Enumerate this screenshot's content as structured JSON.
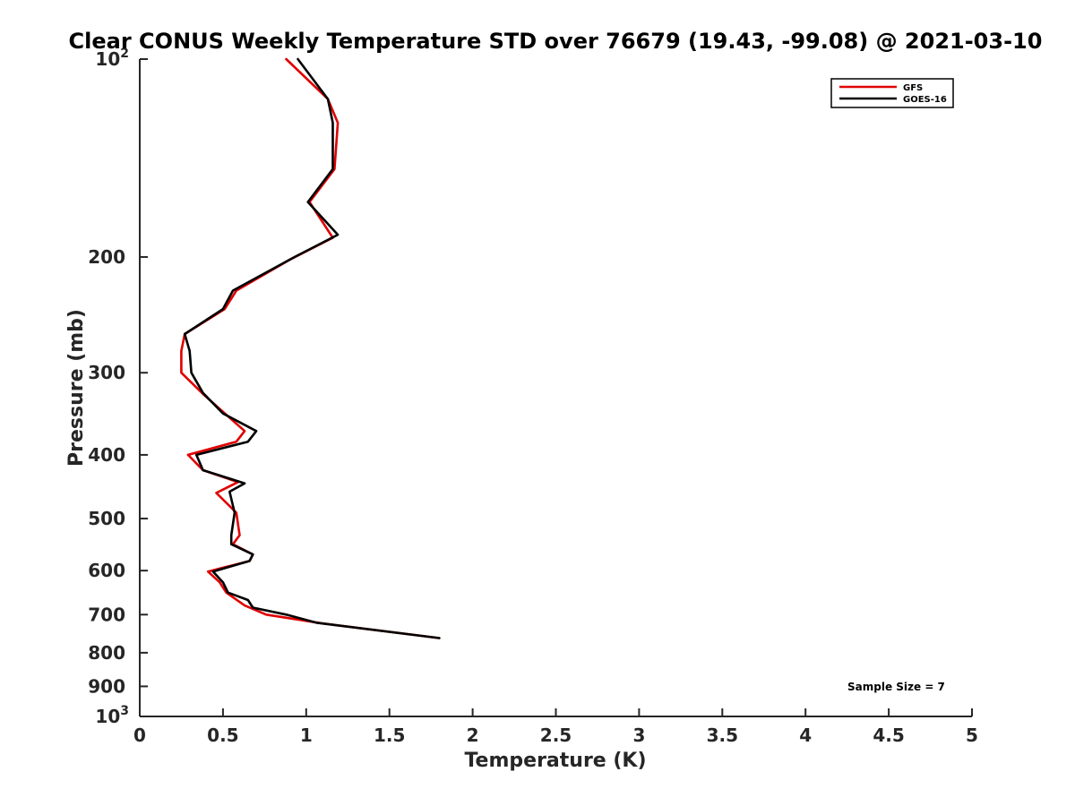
{
  "chart_data": {
    "type": "line",
    "title": "Clear CONUS Weekly Temperature STD over 76679 (19.43, -99.08) @ 2021-03-10",
    "xlabel": "Temperature (K)",
    "ylabel": "Pressure (mb)",
    "xlim": [
      0,
      5
    ],
    "ylim": [
      100,
      1000
    ],
    "y_scale": "log",
    "y_reversed": true,
    "grid": false,
    "legend_position": "top-right",
    "x_ticks": [
      "0",
      "0.5",
      "1",
      "1.5",
      "2",
      "2.5",
      "3",
      "3.5",
      "4",
      "4.5",
      "5"
    ],
    "y_ticks": [
      {
        "value": 100,
        "base": "10",
        "exp": "2"
      },
      {
        "value": 200,
        "label": "200"
      },
      {
        "value": 300,
        "label": "300"
      },
      {
        "value": 400,
        "label": "400"
      },
      {
        "value": 500,
        "label": "500"
      },
      {
        "value": 600,
        "label": "600"
      },
      {
        "value": 700,
        "label": "700"
      },
      {
        "value": 800,
        "label": "800"
      },
      {
        "value": 900,
        "label": "900"
      },
      {
        "value": 1000,
        "base": "10",
        "exp": "3"
      }
    ],
    "series": [
      {
        "name": "GFS",
        "color": "#e00000",
        "points": [
          [
            0.88,
            100
          ],
          [
            1.13,
            115
          ],
          [
            1.19,
            125
          ],
          [
            1.17,
            147
          ],
          [
            1.02,
            165
          ],
          [
            1.16,
            187
          ],
          [
            0.9,
            202
          ],
          [
            0.58,
            225
          ],
          [
            0.51,
            240
          ],
          [
            0.27,
            262
          ],
          [
            0.25,
            278
          ],
          [
            0.25,
            300
          ],
          [
            0.39,
            325
          ],
          [
            0.63,
            368
          ],
          [
            0.58,
            382
          ],
          [
            0.29,
            400
          ],
          [
            0.38,
            422
          ],
          [
            0.59,
            440
          ],
          [
            0.46,
            457
          ],
          [
            0.58,
            490
          ],
          [
            0.6,
            530
          ],
          [
            0.56,
            547
          ],
          [
            0.68,
            567
          ],
          [
            0.66,
            580
          ],
          [
            0.41,
            602
          ],
          [
            0.48,
            625
          ],
          [
            0.52,
            648
          ],
          [
            0.63,
            678
          ],
          [
            0.76,
            700
          ],
          [
            1.1,
            722
          ],
          [
            1.8,
            760
          ]
        ]
      },
      {
        "name": "GOES-16",
        "color": "#000000",
        "points": [
          [
            0.95,
            100
          ],
          [
            1.13,
            115
          ],
          [
            1.16,
            125
          ],
          [
            1.16,
            147
          ],
          [
            1.01,
            165
          ],
          [
            1.19,
            185
          ],
          [
            0.93,
            200
          ],
          [
            0.56,
            225
          ],
          [
            0.5,
            240
          ],
          [
            0.27,
            262
          ],
          [
            0.3,
            278
          ],
          [
            0.31,
            300
          ],
          [
            0.38,
            322
          ],
          [
            0.5,
            346
          ],
          [
            0.7,
            368
          ],
          [
            0.65,
            382
          ],
          [
            0.34,
            400
          ],
          [
            0.38,
            422
          ],
          [
            0.63,
            442
          ],
          [
            0.54,
            455
          ],
          [
            0.57,
            490
          ],
          [
            0.55,
            530
          ],
          [
            0.55,
            547
          ],
          [
            0.68,
            567
          ],
          [
            0.66,
            580
          ],
          [
            0.44,
            602
          ],
          [
            0.5,
            625
          ],
          [
            0.53,
            648
          ],
          [
            0.65,
            665
          ],
          [
            0.68,
            683
          ],
          [
            0.88,
            700
          ],
          [
            1.06,
            720
          ],
          [
            1.8,
            760
          ]
        ]
      }
    ],
    "annotations": [
      "Sample Size = 7"
    ]
  }
}
